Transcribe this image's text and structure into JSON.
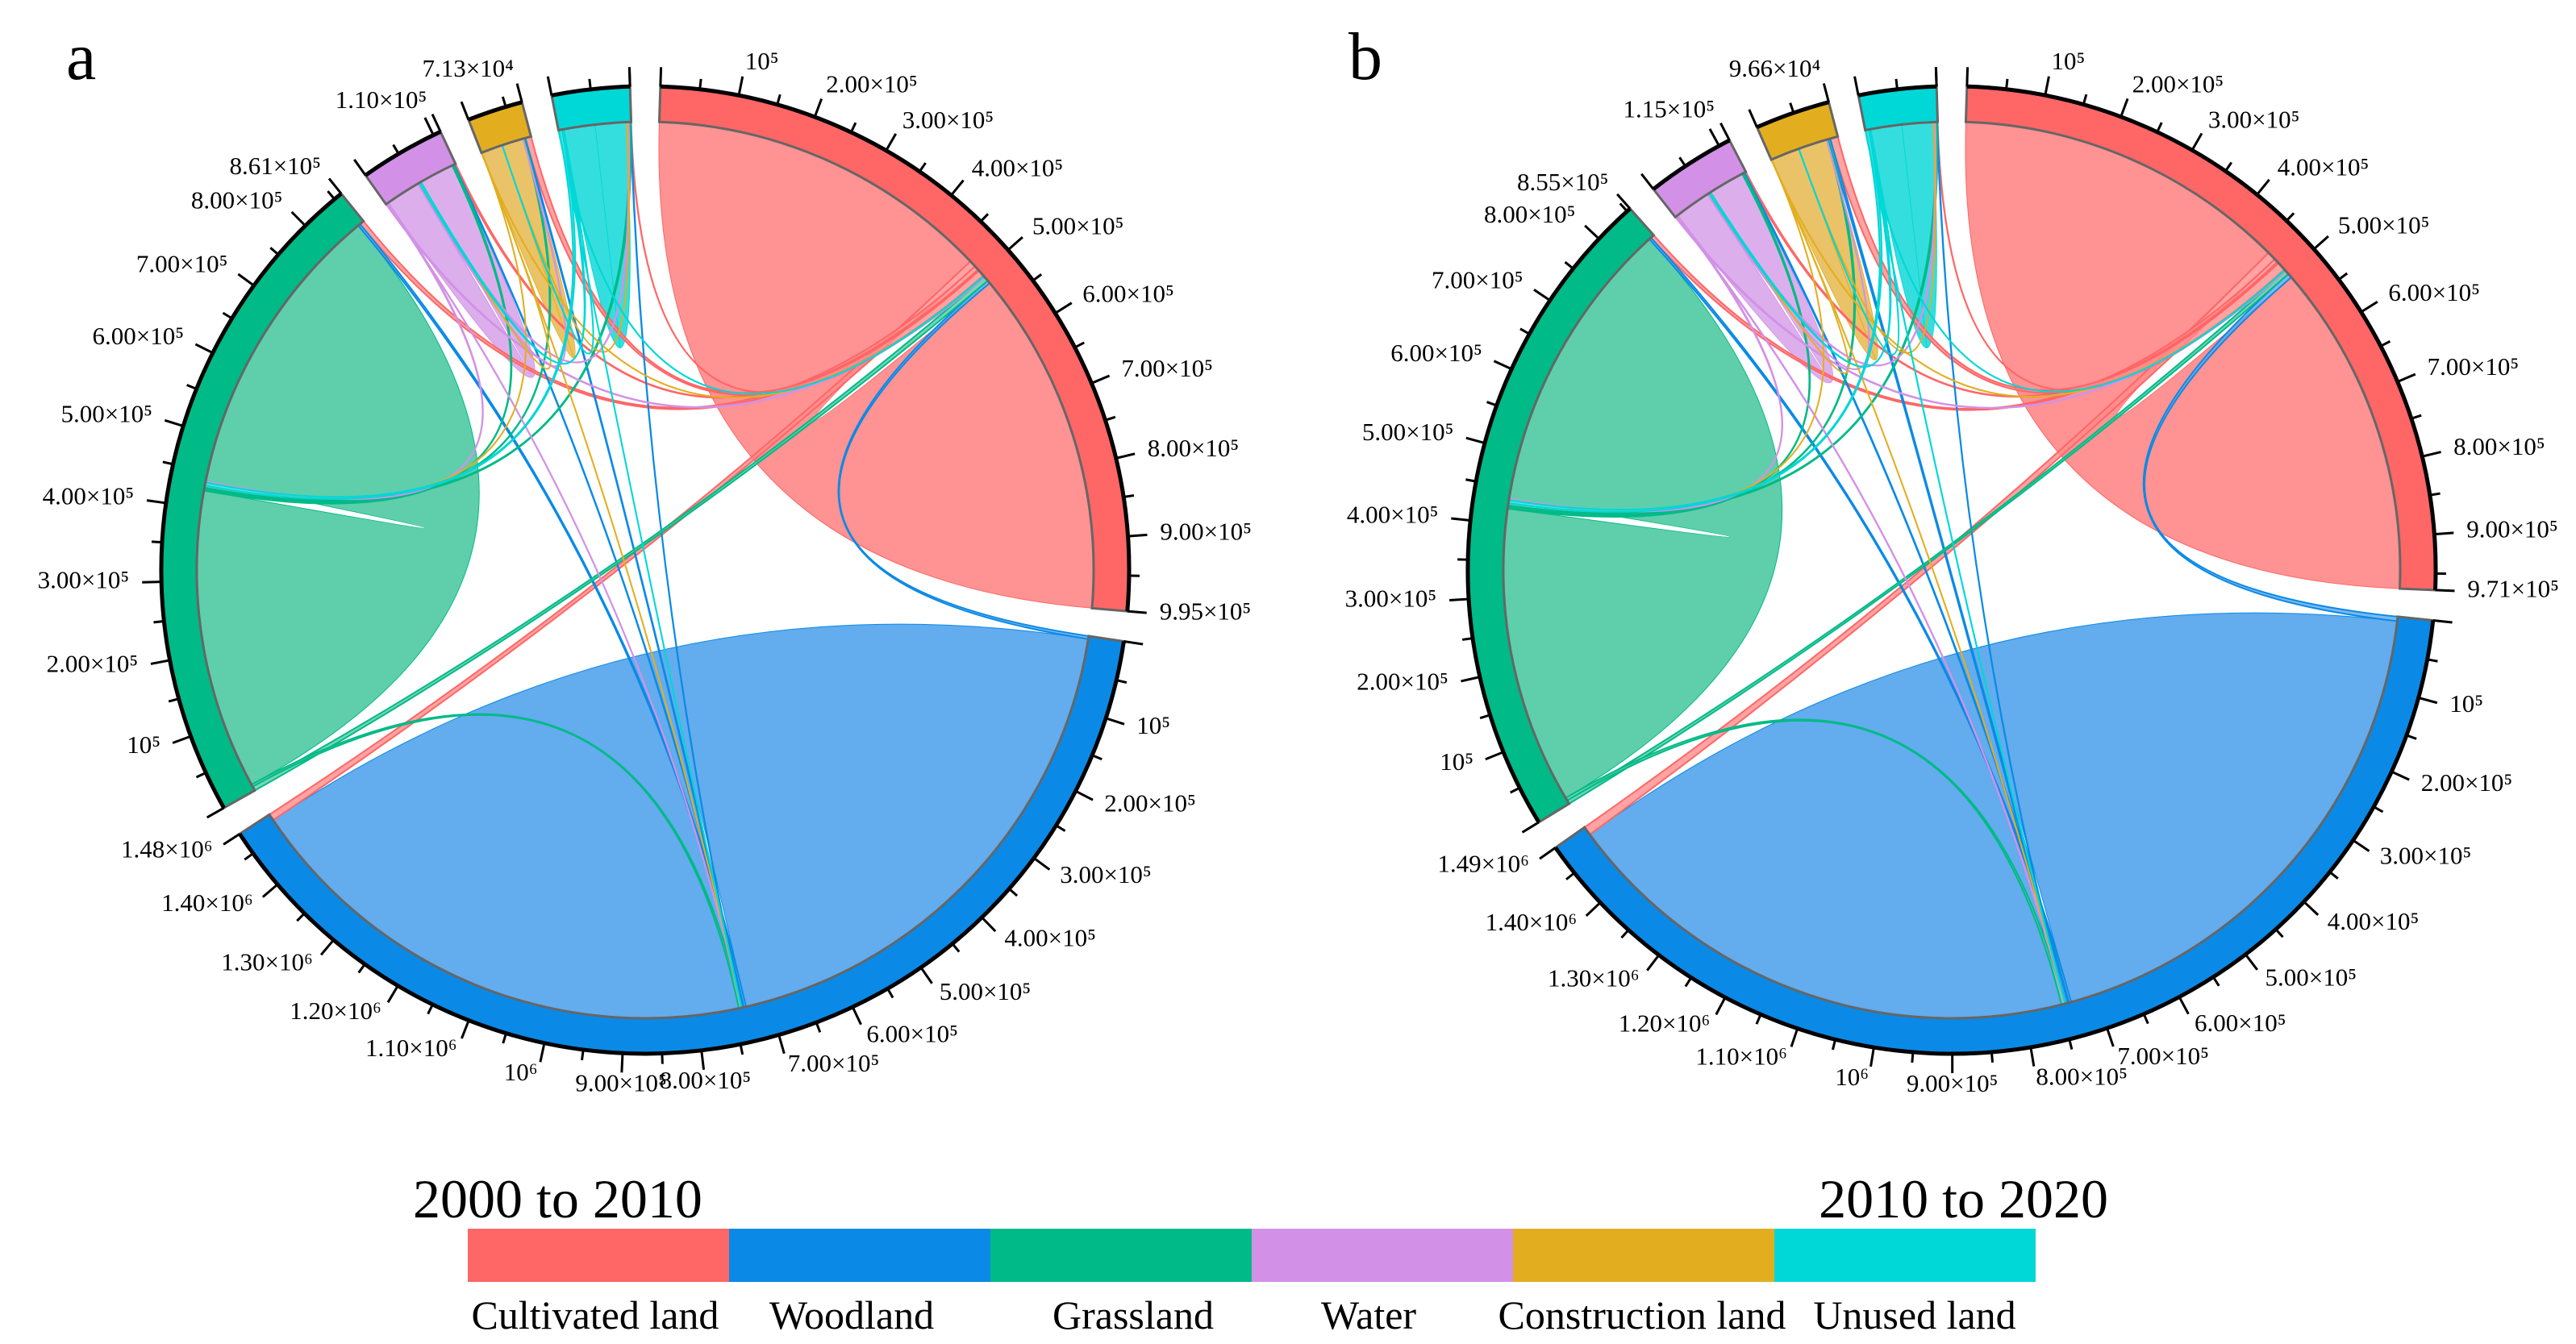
{
  "legend": {
    "items": [
      {
        "label": "Cultivated land",
        "color": "#FF6666"
      },
      {
        "label": "Woodland",
        "color": "#0A8AE6"
      },
      {
        "label": "Grassland",
        "color": "#00BA87"
      },
      {
        "label": "Water",
        "color": "#D291E6"
      },
      {
        "label": "Construction land",
        "color": "#E2AE20"
      },
      {
        "label": "Unused land",
        "color": "#00D7D7"
      }
    ]
  },
  "chart_data": [
    {
      "type": "chord",
      "panel": "a",
      "title": "2000 to 2010",
      "segments": [
        "Cultivated land",
        "Woodland",
        "Grassland",
        "Water",
        "Construction land",
        "Unused land"
      ],
      "colors": [
        "#FF6666",
        "#0A8AE6",
        "#00BA87",
        "#D291E6",
        "#E2AE20",
        "#00D7D7"
      ],
      "chord_colors": [
        "#FF8C8C",
        "#5BA8EC",
        "#55CCA5",
        "#DAABEB",
        "#E9C060",
        "#2ADCDC"
      ],
      "totals": [
        995000,
        1480000,
        861000,
        110000,
        71300,
        100000
      ],
      "matrix": [
        [
          468000,
          9000,
          6000,
          2000,
          9000,
          500
        ],
        [
          4000,
          722000,
          3000,
          1000,
          1500,
          500
        ],
        [
          6000,
          3000,
          404000,
          2000,
          2000,
          3000
        ],
        [
          1500,
          500,
          1500,
          47000,
          300,
          2000
        ],
        [
          300,
          100,
          100,
          100,
          33000,
          50
        ],
        [
          500,
          200,
          4000,
          2500,
          100,
          44000
        ]
      ],
      "tick_labels": [
        [
          {
            "v": 100000,
            "t": "10⁵"
          },
          {
            "v": 200000,
            "t": "2.00×10⁵"
          },
          {
            "v": 300000,
            "t": "3.00×10⁵"
          },
          {
            "v": 400000,
            "t": "4.00×10⁵"
          },
          {
            "v": 500000,
            "t": "5.00×10⁵"
          },
          {
            "v": 600000,
            "t": "6.00×10⁵"
          },
          {
            "v": 700000,
            "t": "7.00×10⁵"
          },
          {
            "v": 800000,
            "t": "8.00×10⁵"
          },
          {
            "v": 900000,
            "t": "9.00×10⁵"
          },
          {
            "v": 995000,
            "t": "9.95×10⁵"
          }
        ],
        [
          {
            "v": 100000,
            "t": "10⁵"
          },
          {
            "v": 200000,
            "t": "2.00×10⁵"
          },
          {
            "v": 300000,
            "t": "3.00×10⁵"
          },
          {
            "v": 400000,
            "t": "4.00×10⁵"
          },
          {
            "v": 500000,
            "t": "5.00×10⁵"
          },
          {
            "v": 600000,
            "t": "6.00×10⁵"
          },
          {
            "v": 700000,
            "t": "7.00×10⁵"
          },
          {
            "v": 800000,
            "t": "8.00×10⁵"
          },
          {
            "v": 900000,
            "t": "9.00×10⁵"
          },
          {
            "v": 1000000,
            "t": "10⁶"
          },
          {
            "v": 1100000,
            "t": "1.10×10⁶"
          },
          {
            "v": 1200000,
            "t": "1.20×10⁶"
          },
          {
            "v": 1300000,
            "t": "1.30×10⁶"
          },
          {
            "v": 1400000,
            "t": "1.40×10⁶"
          },
          {
            "v": 1480000,
            "t": "1.48×10⁶"
          }
        ],
        [
          {
            "v": 100000,
            "t": "10⁵"
          },
          {
            "v": 200000,
            "t": "2.00×10⁵"
          },
          {
            "v": 300000,
            "t": "3.00×10⁵"
          },
          {
            "v": 400000,
            "t": "4.00×10⁵"
          },
          {
            "v": 500000,
            "t": "5.00×10⁵"
          },
          {
            "v": 600000,
            "t": "6.00×10⁵"
          },
          {
            "v": 700000,
            "t": "7.00×10⁵"
          },
          {
            "v": 800000,
            "t": "8.00×10⁵"
          },
          {
            "v": 861000,
            "t": "8.61×10⁵"
          }
        ],
        [
          {
            "v": 110000,
            "t": "1.10×10⁵"
          }
        ],
        [
          {
            "v": 71300,
            "t": "7.13×10⁴"
          }
        ],
        []
      ]
    },
    {
      "type": "chord",
      "panel": "b",
      "title": "2010 to 2020",
      "segments": [
        "Cultivated land",
        "Woodland",
        "Grassland",
        "Water",
        "Construction land",
        "Unused land"
      ],
      "colors": [
        "#FF6666",
        "#0A8AE6",
        "#00BA87",
        "#D291E6",
        "#E2AE20",
        "#00D7D7"
      ],
      "chord_colors": [
        "#FF8C8C",
        "#5BA8EC",
        "#55CCA5",
        "#DAABEB",
        "#E9C060",
        "#2ADCDC"
      ],
      "totals": [
        971000,
        1490000,
        855000,
        115000,
        96600,
        100000
      ],
      "matrix": [
        [
          452000,
          12000,
          5000,
          2000,
          12000,
          500
        ],
        [
          6000,
          715000,
          3000,
          1500,
          3000,
          500
        ],
        [
          5000,
          4000,
          404000,
          2000,
          2500,
          3000
        ],
        [
          1500,
          800,
          1500,
          49000,
          400,
          2000
        ],
        [
          300,
          200,
          100,
          100,
          44000,
          50
        ],
        [
          500,
          300,
          4000,
          2500,
          200,
          44000
        ]
      ],
      "tick_labels": [
        [
          {
            "v": 100000,
            "t": "10⁵"
          },
          {
            "v": 200000,
            "t": "2.00×10⁵"
          },
          {
            "v": 300000,
            "t": "3.00×10⁵"
          },
          {
            "v": 400000,
            "t": "4.00×10⁵"
          },
          {
            "v": 500000,
            "t": "5.00×10⁵"
          },
          {
            "v": 600000,
            "t": "6.00×10⁵"
          },
          {
            "v": 700000,
            "t": "7.00×10⁵"
          },
          {
            "v": 800000,
            "t": "8.00×10⁵"
          },
          {
            "v": 900000,
            "t": "9.00×10⁵"
          },
          {
            "v": 971000,
            "t": "9.71×10⁵"
          }
        ],
        [
          {
            "v": 100000,
            "t": "10⁵"
          },
          {
            "v": 200000,
            "t": "2.00×10⁵"
          },
          {
            "v": 300000,
            "t": "3.00×10⁵"
          },
          {
            "v": 400000,
            "t": "4.00×10⁵"
          },
          {
            "v": 500000,
            "t": "5.00×10⁵"
          },
          {
            "v": 600000,
            "t": "6.00×10⁵"
          },
          {
            "v": 700000,
            "t": "7.00×10⁵"
          },
          {
            "v": 800000,
            "t": "8.00×10⁵"
          },
          {
            "v": 900000,
            "t": "9.00×10⁵"
          },
          {
            "v": 1000000,
            "t": "10⁶"
          },
          {
            "v": 1100000,
            "t": "1.10×10⁶"
          },
          {
            "v": 1200000,
            "t": "1.20×10⁶"
          },
          {
            "v": 1300000,
            "t": "1.30×10⁶"
          },
          {
            "v": 1400000,
            "t": "1.40×10⁶"
          },
          {
            "v": 1490000,
            "t": "1.49×10⁶"
          }
        ],
        [
          {
            "v": 100000,
            "t": "10⁵"
          },
          {
            "v": 200000,
            "t": "2.00×10⁵"
          },
          {
            "v": 300000,
            "t": "3.00×10⁵"
          },
          {
            "v": 400000,
            "t": "4.00×10⁵"
          },
          {
            "v": 500000,
            "t": "5.00×10⁵"
          },
          {
            "v": 600000,
            "t": "6.00×10⁵"
          },
          {
            "v": 700000,
            "t": "7.00×10⁵"
          },
          {
            "v": 800000,
            "t": "8.00×10⁵"
          },
          {
            "v": 855000,
            "t": "8.55×10⁵"
          }
        ],
        [
          {
            "v": 115000,
            "t": "1.15×10⁵"
          }
        ],
        [
          {
            "v": 96600,
            "t": "9.66×10⁴"
          }
        ],
        []
      ]
    }
  ]
}
